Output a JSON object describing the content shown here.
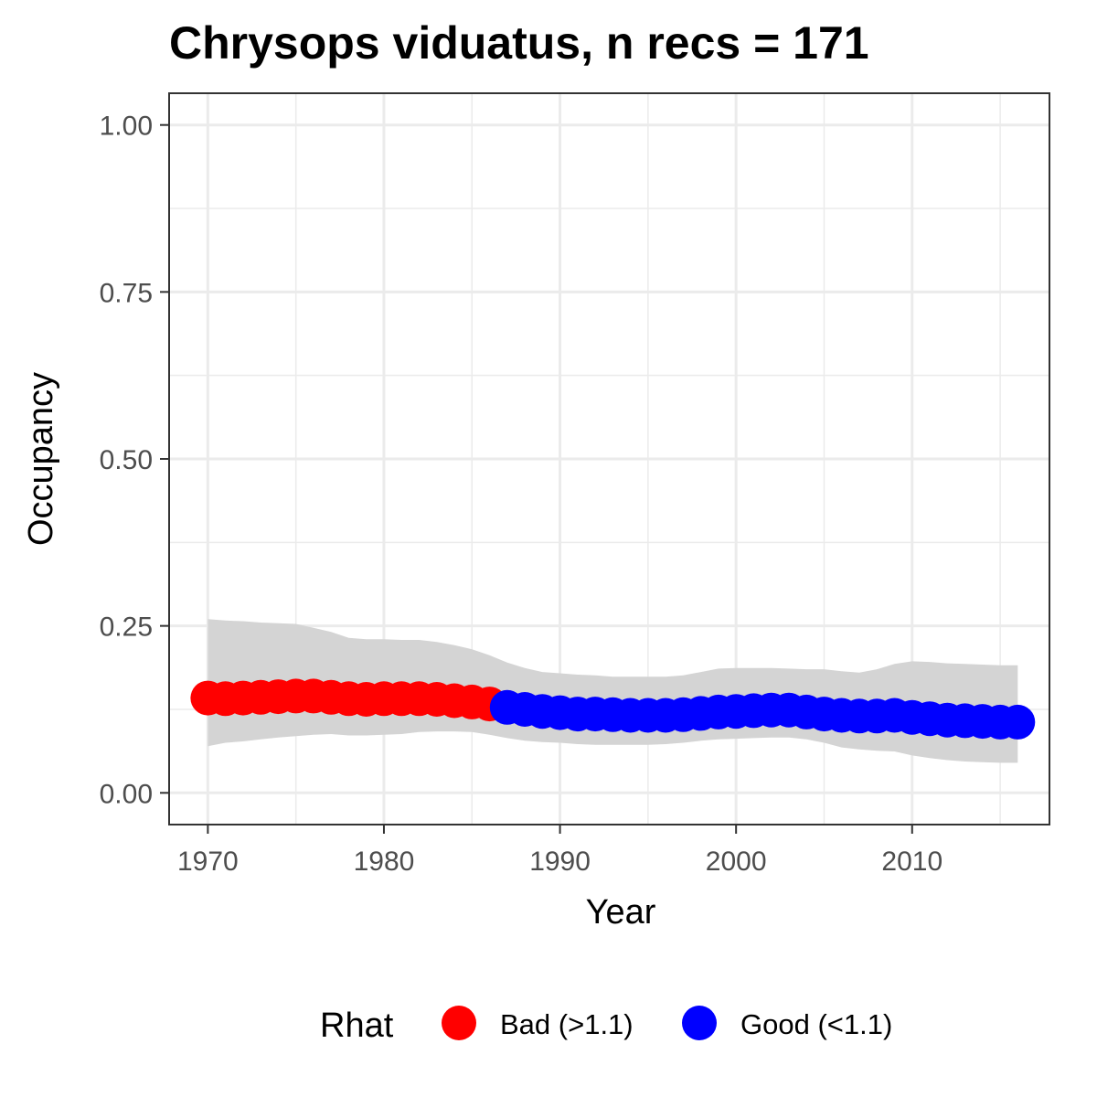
{
  "chart_data": {
    "type": "line",
    "title": "Chrysops viduatus, n recs = 171",
    "xlabel": "Year",
    "ylabel": "Occupancy",
    "xlim": [
      1967.8,
      2017.8
    ],
    "ylim": [
      -0.0475,
      1.0475
    ],
    "x_ticks": [
      1970,
      1980,
      1990,
      2000,
      2010
    ],
    "x_tick_labels": [
      "1970",
      "1980",
      "1990",
      "2000",
      "2010"
    ],
    "y_ticks": [
      0,
      0.25,
      0.5,
      0.75,
      1.0
    ],
    "y_tick_labels": [
      "0.00",
      "0.25",
      "0.50",
      "0.75",
      "1.00"
    ],
    "grid": true,
    "legend": {
      "title": "Rhat",
      "position": "bottom",
      "entries": [
        {
          "label": "Bad (>1.1)",
          "color": "#ff0000"
        },
        {
          "label": "Good (<1.1)",
          "color": "#0000ff"
        }
      ]
    },
    "ribbon_color": "#d4d4d4",
    "x": [
      1970,
      1971,
      1972,
      1973,
      1974,
      1975,
      1976,
      1977,
      1978,
      1979,
      1980,
      1981,
      1982,
      1983,
      1984,
      1985,
      1986,
      1987,
      1988,
      1989,
      1990,
      1991,
      1992,
      1993,
      1994,
      1995,
      1996,
      1997,
      1998,
      1999,
      2000,
      2001,
      2002,
      2003,
      2004,
      2005,
      2006,
      2007,
      2008,
      2009,
      2010,
      2011,
      2012,
      2013,
      2014,
      2015,
      2016
    ],
    "series": [
      {
        "name": "Bad (>1.1)",
        "color": "#ff0000",
        "x": [
          1970,
          1971,
          1972,
          1973,
          1974,
          1975,
          1976,
          1977,
          1978,
          1979,
          1980,
          1981,
          1982,
          1983,
          1984,
          1985,
          1986
        ],
        "values": [
          0.142,
          0.141,
          0.142,
          0.143,
          0.144,
          0.145,
          0.145,
          0.143,
          0.141,
          0.14,
          0.141,
          0.141,
          0.141,
          0.14,
          0.138,
          0.136,
          0.133
        ]
      },
      {
        "name": "Good (<1.1)",
        "color": "#0000ff",
        "x": [
          1987,
          1988,
          1989,
          1990,
          1991,
          1992,
          1993,
          1994,
          1995,
          1996,
          1997,
          1998,
          1999,
          2000,
          2001,
          2002,
          2003,
          2004,
          2005,
          2006,
          2007,
          2008,
          2009,
          2010,
          2011,
          2012,
          2013,
          2014,
          2015,
          2016
        ],
        "values": [
          0.128,
          0.125,
          0.122,
          0.12,
          0.118,
          0.118,
          0.117,
          0.116,
          0.116,
          0.116,
          0.117,
          0.119,
          0.121,
          0.122,
          0.123,
          0.124,
          0.124,
          0.121,
          0.118,
          0.116,
          0.115,
          0.115,
          0.116,
          0.113,
          0.111,
          0.109,
          0.108,
          0.107,
          0.106,
          0.106
        ]
      }
    ],
    "ribbon": {
      "upper": [
        0.26,
        0.258,
        0.257,
        0.255,
        0.254,
        0.253,
        0.247,
        0.241,
        0.232,
        0.23,
        0.23,
        0.229,
        0.229,
        0.226,
        0.221,
        0.215,
        0.206,
        0.195,
        0.187,
        0.181,
        0.179,
        0.177,
        0.176,
        0.174,
        0.174,
        0.174,
        0.174,
        0.176,
        0.181,
        0.186,
        0.187,
        0.187,
        0.187,
        0.186,
        0.185,
        0.185,
        0.182,
        0.18,
        0.185,
        0.193,
        0.197,
        0.196,
        0.194,
        0.193,
        0.192,
        0.191,
        0.191
      ],
      "lower": [
        0.07,
        0.075,
        0.077,
        0.08,
        0.083,
        0.085,
        0.087,
        0.088,
        0.086,
        0.086,
        0.087,
        0.088,
        0.091,
        0.092,
        0.092,
        0.091,
        0.087,
        0.082,
        0.078,
        0.076,
        0.075,
        0.073,
        0.072,
        0.072,
        0.072,
        0.072,
        0.073,
        0.075,
        0.078,
        0.08,
        0.081,
        0.082,
        0.083,
        0.083,
        0.08,
        0.075,
        0.068,
        0.065,
        0.063,
        0.062,
        0.056,
        0.052,
        0.049,
        0.047,
        0.046,
        0.045,
        0.045
      ]
    }
  }
}
